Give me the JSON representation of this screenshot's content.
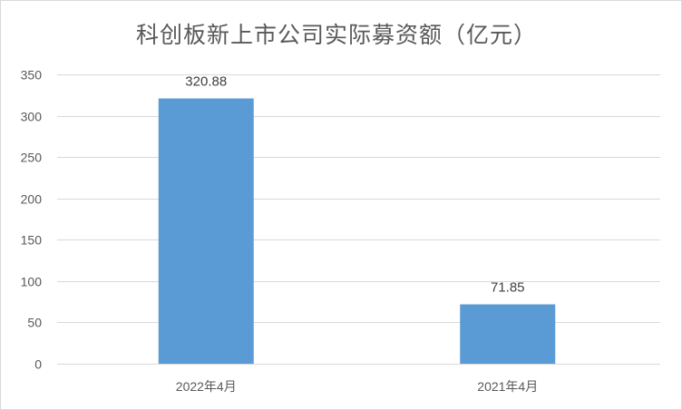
{
  "chart_data": {
    "type": "bar",
    "title": "科创板新上市公司实际募资额（亿元）",
    "categories": [
      "2022年4月",
      "2021年4月"
    ],
    "values": [
      320.88,
      71.85
    ],
    "data_labels": [
      "320.88",
      "71.85"
    ],
    "ylim": [
      0,
      350
    ],
    "yticks": [
      0,
      50,
      100,
      150,
      200,
      250,
      300,
      350
    ],
    "grid": true,
    "legend": "none",
    "bar_color": "#5b9bd5",
    "grid_color": "#d9d9d9",
    "text_color": "#595959"
  }
}
